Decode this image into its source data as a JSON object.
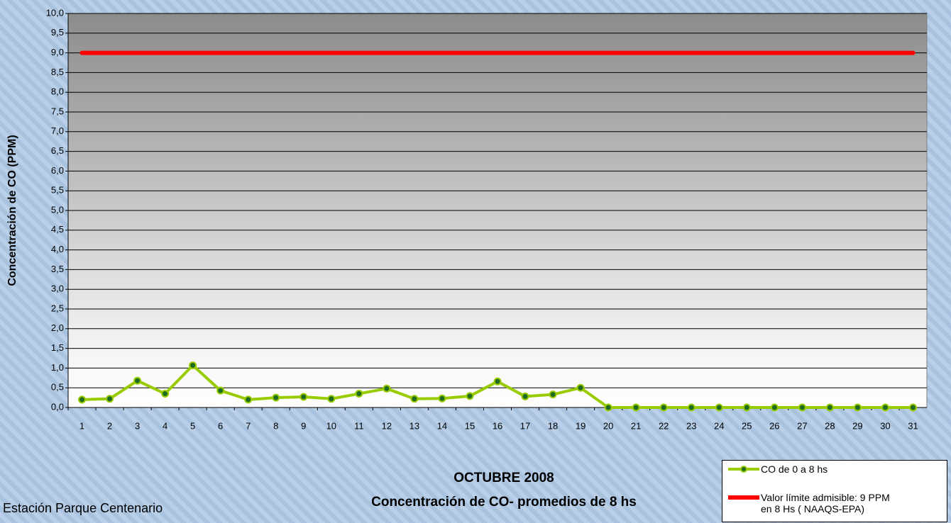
{
  "chart_data": {
    "type": "line",
    "title": "OCTUBRE 2008",
    "subtitle": "Concentración de CO- promedios de 8 hs",
    "y_label": "Concentración de CO (PPM)",
    "note": "Estación Parque Centenario",
    "categories": [
      "1",
      "2",
      "3",
      "4",
      "5",
      "6",
      "7",
      "8",
      "9",
      "10",
      "11",
      "12",
      "13",
      "14",
      "15",
      "16",
      "17",
      "18",
      "19",
      "20",
      "21",
      "22",
      "23",
      "24",
      "25",
      "26",
      "27",
      "28",
      "29",
      "30",
      "31"
    ],
    "series": [
      {
        "name": "CO de 0 a 8 hs",
        "color": "#99cc00",
        "marker_color": "#1f6b1f",
        "values": [
          0.2,
          0.22,
          0.68,
          0.35,
          1.07,
          0.43,
          0.2,
          0.25,
          0.27,
          0.22,
          0.35,
          0.48,
          0.22,
          0.23,
          0.29,
          0.66,
          0.28,
          0.33,
          0.5,
          0,
          0,
          0,
          0,
          0,
          0,
          0,
          0,
          0,
          0,
          0,
          0
        ]
      },
      {
        "name": "Valor límite admisible: 9 PPM en 8 Hs ( NAAQS-EPA)",
        "color": "#ff0000",
        "values": [
          9,
          9,
          9,
          9,
          9,
          9,
          9,
          9,
          9,
          9,
          9,
          9,
          9,
          9,
          9,
          9,
          9,
          9,
          9,
          9,
          9,
          9,
          9,
          9,
          9,
          9,
          9,
          9,
          9,
          9,
          9
        ]
      }
    ],
    "ylim": [
      0,
      10
    ],
    "yticks": [
      {
        "value": 0,
        "label": "0,0"
      },
      {
        "value": 0.5,
        "label": "0,5"
      },
      {
        "value": 1,
        "label": "1,0"
      },
      {
        "value": 1.5,
        "label": "1,5"
      },
      {
        "value": 2,
        "label": "2,0"
      },
      {
        "value": 2.5,
        "label": "2,5"
      },
      {
        "value": 3,
        "label": "3,0"
      },
      {
        "value": 3.5,
        "label": "3,5"
      },
      {
        "value": 4,
        "label": "4,0"
      },
      {
        "value": 4.5,
        "label": "4,5"
      },
      {
        "value": 5,
        "label": "5,0"
      },
      {
        "value": 5.5,
        "label": "5,5"
      },
      {
        "value": 6,
        "label": "6,0"
      },
      {
        "value": 6.5,
        "label": "6,5"
      },
      {
        "value": 7,
        "label": "7,0"
      },
      {
        "value": 7.5,
        "label": "7,5"
      },
      {
        "value": 8,
        "label": "8,0"
      },
      {
        "value": 8.5,
        "label": "8,5"
      },
      {
        "value": 9,
        "label": "9,0"
      },
      {
        "value": 9.5,
        "label": "9,5"
      },
      {
        "value": 10,
        "label": "10,0"
      }
    ],
    "grid": true
  }
}
